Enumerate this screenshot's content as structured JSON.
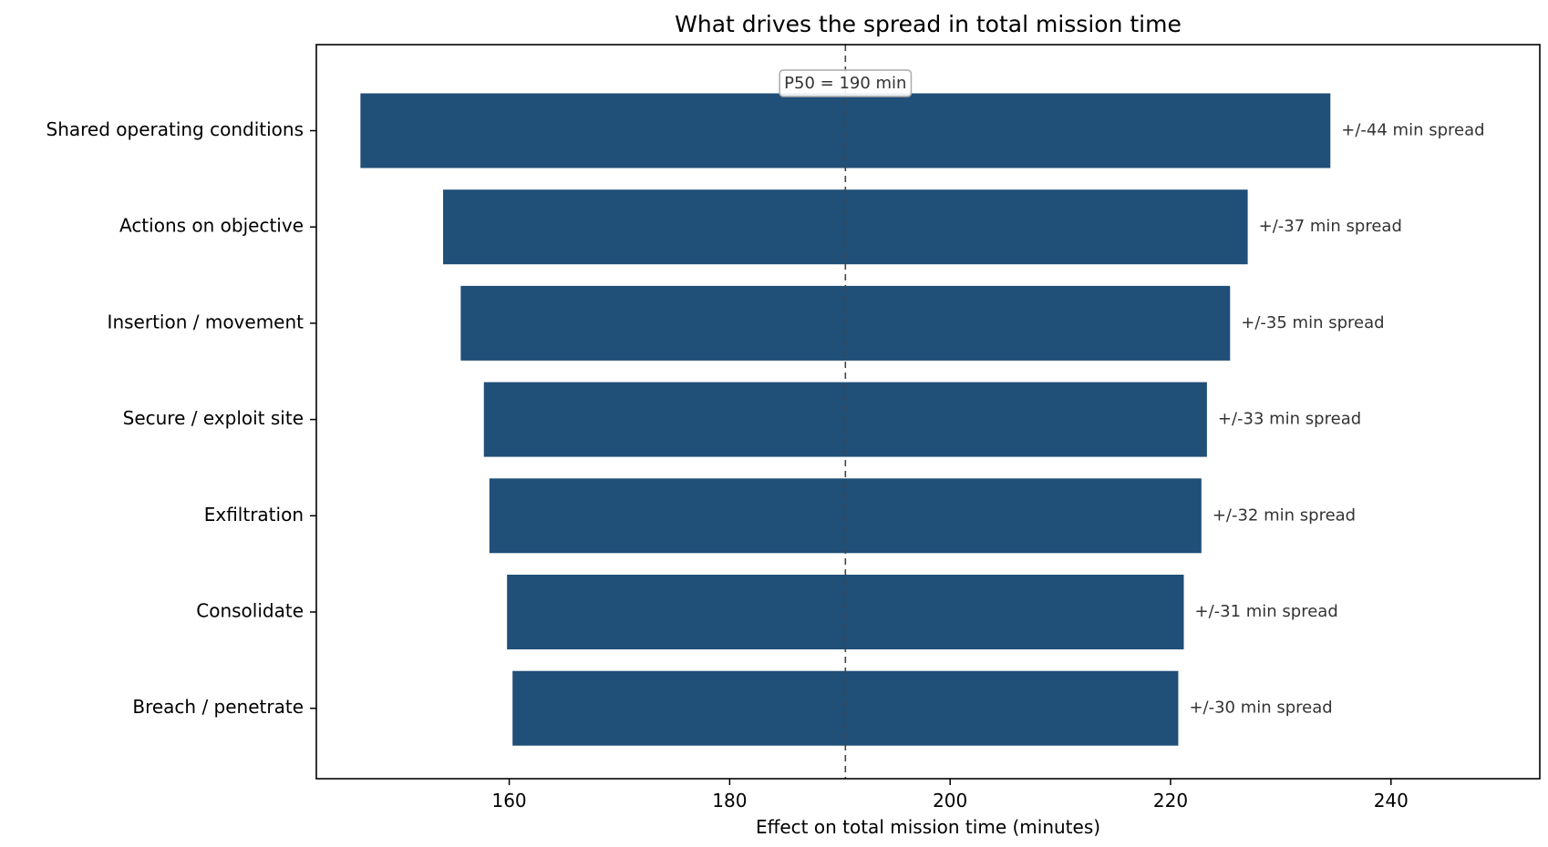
{
  "chart_data": {
    "type": "bar",
    "orientation": "horizontal",
    "title": "What drives the spread in total mission time",
    "xlabel": "Effect on total mission time  (minutes)",
    "ylabel": "",
    "xlim": [
      142.5,
      253.5
    ],
    "xticks": [
      160,
      180,
      200,
      220,
      240
    ],
    "xtick_labels": [
      "160",
      "180",
      "200",
      "220",
      "240"
    ],
    "grid": false,
    "bar_color": "#204f78",
    "reference": {
      "value": 190.5,
      "label": "P50 = 190 min"
    },
    "categories": [
      "Shared operating conditions",
      "Actions on objective",
      "Insertion / movement",
      "Secure / exploit site",
      "Exfiltration",
      "Consolidate",
      "Breach / penetrate"
    ],
    "low": [
      146.5,
      154.0,
      155.6,
      157.7,
      158.2,
      159.8,
      160.3
    ],
    "high": [
      234.5,
      227.0,
      225.4,
      223.3,
      222.8,
      221.2,
      220.7
    ],
    "data_labels": [
      "+/-44 min spread",
      "+/-37 min spread",
      "+/-35 min spread",
      "+/-33 min spread",
      "+/-32 min spread",
      "+/-31 min spread",
      "+/-30 min spread"
    ]
  }
}
